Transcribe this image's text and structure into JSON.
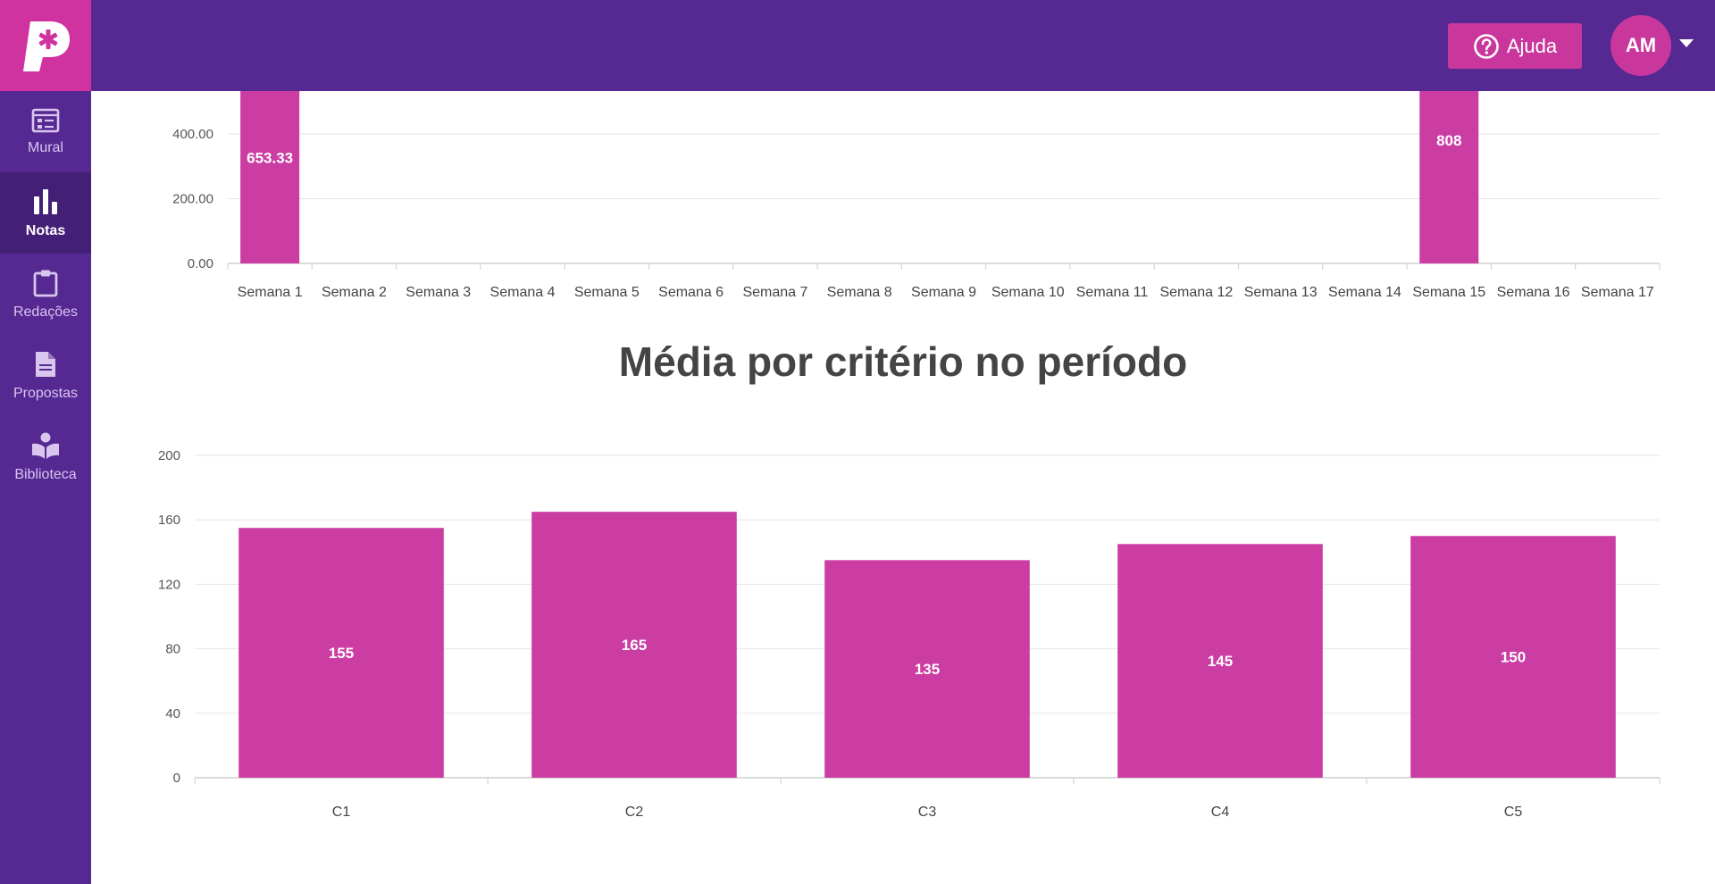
{
  "header": {
    "help_label": "Ajuda",
    "help_icon": "question-circle-icon",
    "avatar_initials": "AM",
    "avatar_menu_icon": "caret-down-icon",
    "logo_icon": "logo-icon"
  },
  "sidebar": {
    "items": [
      {
        "label": "Mural",
        "icon": "mural-icon",
        "active": false
      },
      {
        "label": "Notas",
        "icon": "bar-chart-icon",
        "active": true
      },
      {
        "label": "Redações",
        "icon": "clipboard-icon",
        "active": false
      },
      {
        "label": "Propostas",
        "icon": "document-icon",
        "active": false
      },
      {
        "label": "Biblioteca",
        "icon": "reader-icon",
        "active": false
      }
    ]
  },
  "colors": {
    "brand_purple": "#562892",
    "active_purple": "#431f76",
    "accent_magenta": "#c9379c",
    "bar_color": "#cc3da3"
  },
  "chart_data": [
    {
      "type": "bar",
      "title": "",
      "xlabel": "",
      "ylabel": "",
      "categories": [
        "Semana 1",
        "Semana 2",
        "Semana 3",
        "Semana 4",
        "Semana 5",
        "Semana 6",
        "Semana 7",
        "Semana 8",
        "Semana 9",
        "Semana 10",
        "Semana 11",
        "Semana 12",
        "Semana 13",
        "Semana 14",
        "Semana 15",
        "Semana 16",
        "Semana 17"
      ],
      "values": [
        653.33,
        null,
        null,
        null,
        null,
        null,
        null,
        null,
        null,
        null,
        null,
        null,
        null,
        null,
        808,
        null,
        null
      ],
      "data_labels": [
        "653.33",
        "",
        "",
        "",
        "",
        "",
        "",
        "",
        "",
        "",
        "",
        "",
        "",
        "",
        "808",
        "",
        ""
      ],
      "y_ticks": [
        "0.00",
        "200.00",
        "400.00"
      ],
      "ylim": [
        0,
        400
      ],
      "grid": true,
      "clipped_at_top": true
    },
    {
      "type": "bar",
      "title": "Média por critério no período",
      "xlabel": "",
      "ylabel": "",
      "categories": [
        "C1",
        "C2",
        "C3",
        "C4",
        "C5"
      ],
      "values": [
        155,
        165,
        135,
        145,
        150
      ],
      "data_labels": [
        "155",
        "165",
        "135",
        "145",
        "150"
      ],
      "y_ticks": [
        "0",
        "40",
        "80",
        "120",
        "160",
        "200"
      ],
      "ylim": [
        0,
        200
      ],
      "grid": true
    }
  ]
}
